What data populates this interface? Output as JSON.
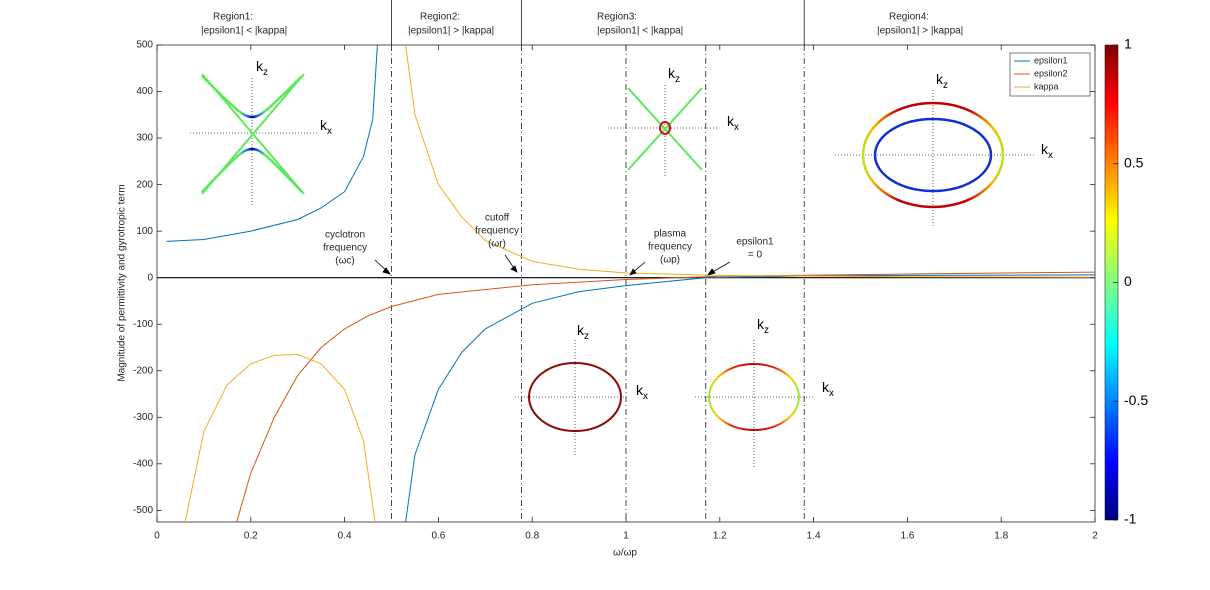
{
  "chart_data": {
    "type": "line",
    "xlabel": "ω/ωp",
    "ylabel": "Magnitude of permittivity and gyrotropic term",
    "xlim": [
      0,
      2
    ],
    "ylim": [
      -525,
      500
    ],
    "xticks": [
      0,
      0.2,
      0.4,
      0.6,
      0.8,
      1,
      1.2,
      1.4,
      1.6,
      1.8,
      2
    ],
    "yticks": [
      500,
      400,
      300,
      200,
      100,
      0,
      -100,
      -200,
      -300,
      -400,
      -500
    ],
    "legend": "upper right",
    "series": [
      {
        "name": "epsilon1",
        "color": "#0072bd",
        "x": [
          0.02,
          0.1,
          0.2,
          0.3,
          0.35,
          0.4,
          0.44,
          0.46,
          0.47,
          0.5,
          0.53,
          0.55,
          0.6,
          0.65,
          0.7,
          0.8,
          0.9,
          1.0,
          1.1,
          1.17,
          1.4,
          1.6,
          2.0
        ],
        "values": [
          78,
          82,
          100,
          125,
          150,
          185,
          260,
          340,
          500,
          null,
          -525,
          -380,
          -240,
          -160,
          -110,
          -55,
          -30,
          -17,
          -7,
          0,
          4,
          5,
          6
        ]
      },
      {
        "name": "epsilon2",
        "color": "#d95319",
        "x": [
          0.17,
          0.2,
          0.25,
          0.3,
          0.35,
          0.4,
          0.45,
          0.5,
          0.6,
          0.8,
          1.0,
          1.2,
          1.6,
          2.0
        ],
        "values": [
          -525,
          -420,
          -300,
          -210,
          -150,
          -110,
          -82,
          -62,
          -36,
          -15,
          -4,
          3,
          8,
          12
        ]
      },
      {
        "name": "kappa",
        "color": "#edb120",
        "x": [
          0.06,
          0.1,
          0.15,
          0.2,
          0.25,
          0.3,
          0.35,
          0.4,
          0.44,
          0.465,
          0.5,
          0.53,
          0.55,
          0.6,
          0.65,
          0.7,
          0.8,
          0.9,
          1.0,
          1.2,
          1.6,
          2.0
        ],
        "values": [
          -525,
          -330,
          -230,
          -185,
          -167,
          -165,
          -185,
          -240,
          -350,
          -525,
          null,
          500,
          350,
          200,
          130,
          80,
          35,
          18,
          10,
          5,
          2,
          1
        ]
      }
    ],
    "vlines": [
      0.5,
      0.777,
      1.0,
      1.17,
      1.38
    ],
    "region_edges": [
      0.5,
      0.777,
      1.38
    ],
    "regions": [
      {
        "title": "Region1:",
        "condition": "|epsilon1| < |kappa|"
      },
      {
        "title": "Region2:",
        "condition": "|epsilon1| > |kappa|"
      },
      {
        "title": "Region3:",
        "condition": "|epsilon1| < |kappa|"
      },
      {
        "title": "Region4:",
        "condition": "|epsilon1| > |kappa|"
      }
    ],
    "annotations": [
      [
        "cyclotron",
        "frequency",
        "(ωc)"
      ],
      [
        "cutoff",
        "frequency",
        "(ωr)"
      ],
      [
        "plasma",
        "frequency",
        "(ωp)"
      ],
      [
        "epsilon1",
        "= 0"
      ]
    ],
    "k_label": "k",
    "sub_z": "z",
    "sub_x": "x",
    "colorbar": {
      "lim": [
        -1,
        1
      ],
      "ticks": [
        1,
        0.5,
        0,
        -0.5,
        -1
      ],
      "colormap": "jet"
    }
  }
}
